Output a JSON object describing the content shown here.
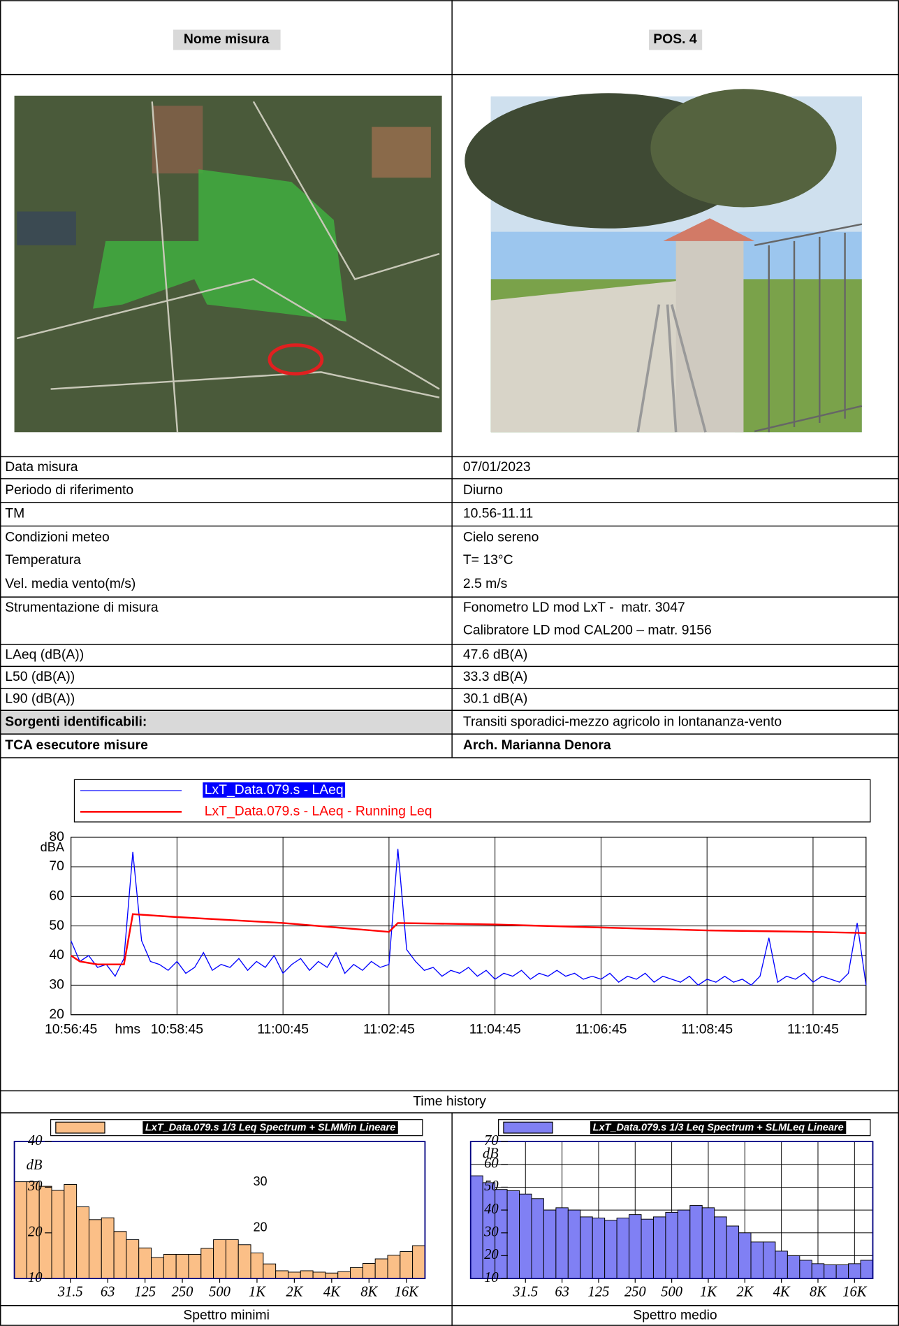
{
  "header": {
    "left": "Nome misura",
    "right": "POS. 4"
  },
  "table": {
    "rows": [
      {
        "label": "Data misura",
        "value": "07/01/2023"
      },
      {
        "label": "Periodo di riferimento",
        "value": "Diurno"
      },
      {
        "label": "TM",
        "value": "10.56-11.11"
      },
      {
        "label": "Condizioni meteo",
        "value": "Cielo sereno"
      },
      {
        "label": "Temperatura",
        "value": "T= 13°C"
      },
      {
        "label": "Vel. media vento(m/s)",
        "value": "2.5 m/s"
      },
      {
        "label": "Strumentazione di misura",
        "value": [
          "Fonometro LD mod LxT -  matr. 3047",
          "Calibratore LD mod CAL200 – matr. 9156"
        ]
      },
      {
        "label": "LAeq (dB(A))",
        "value": "47.6 dB(A)"
      },
      {
        "label": "L50 (dB(A))",
        "value": "33.3 dB(A)"
      },
      {
        "label": "L90 (dB(A))",
        "value": "30.1 dB(A)"
      },
      {
        "label": "Sorgenti identificabili:",
        "value": "Transiti sporadici-mezzo agricolo in lontananza-vento"
      },
      {
        "label": "TCA esecutore misure",
        "value": "Arch. Marianna Denora"
      }
    ]
  },
  "chart_data": [
    {
      "type": "line",
      "caption": "Time history",
      "xlabel": "hms",
      "ylabel": "dBA",
      "grid": true,
      "xlim": [
        39405,
        40305
      ],
      "xticks": [
        {
          "value": 39405,
          "label": "10:56:45"
        },
        {
          "value": 39525,
          "label": "10:58:45"
        },
        {
          "value": 39645,
          "label": "11:00:45"
        },
        {
          "value": 39765,
          "label": "11:02:45"
        },
        {
          "value": 39885,
          "label": "11:04:45"
        },
        {
          "value": 40005,
          "label": "11:06:45"
        },
        {
          "value": 40125,
          "label": "11:08:45"
        },
        {
          "value": 40245,
          "label": "11:10:45"
        }
      ],
      "ylim": [
        20,
        80
      ],
      "yticks": [
        20,
        30,
        40,
        50,
        60,
        70,
        80
      ],
      "series": [
        {
          "name": "LxT_Data.079.s - LAeq",
          "color": "#0000ff",
          "x": [
            39405,
            39415,
            39425,
            39435,
            39445,
            39455,
            39465,
            39475,
            39485,
            39495,
            39505,
            39515,
            39525,
            39535,
            39545,
            39555,
            39565,
            39575,
            39585,
            39595,
            39605,
            39615,
            39625,
            39635,
            39645,
            39655,
            39665,
            39675,
            39685,
            39695,
            39705,
            39715,
            39725,
            39735,
            39745,
            39755,
            39765,
            39775,
            39785,
            39795,
            39805,
            39815,
            39825,
            39835,
            39845,
            39855,
            39865,
            39875,
            39885,
            39895,
            39905,
            39915,
            39925,
            39935,
            39945,
            39955,
            39965,
            39975,
            39985,
            39995,
            40005,
            40015,
            40025,
            40035,
            40045,
            40055,
            40065,
            40075,
            40085,
            40095,
            40105,
            40115,
            40125,
            40135,
            40145,
            40155,
            40165,
            40175,
            40185,
            40195,
            40205,
            40215,
            40225,
            40235,
            40245,
            40255,
            40265,
            40275,
            40285,
            40295,
            40305
          ],
          "values": [
            45,
            38,
            40,
            36,
            37,
            33,
            39,
            75,
            45,
            38,
            37,
            35,
            38,
            34,
            36,
            41,
            35,
            37,
            36,
            39,
            35,
            38,
            36,
            40,
            34,
            37,
            39,
            35,
            38,
            36,
            41,
            34,
            37,
            35,
            38,
            36,
            37,
            76,
            42,
            38,
            35,
            36,
            33,
            35,
            34,
            36,
            33,
            35,
            32,
            34,
            33,
            35,
            32,
            34,
            33,
            35,
            33,
            34,
            32,
            33,
            32,
            34,
            31,
            33,
            32,
            34,
            31,
            33,
            32,
            31,
            33,
            30,
            32,
            31,
            33,
            31,
            32,
            30,
            33,
            46,
            31,
            33,
            32,
            34,
            31,
            33,
            32,
            31,
            34,
            51,
            30
          ]
        },
        {
          "name": "LxT_Data.079.s - LAeq - Running Leq",
          "color": "#ff0000",
          "x": [
            39405,
            39415,
            39435,
            39465,
            39475,
            39525,
            39645,
            39765,
            39775,
            39885,
            40005,
            40125,
            40245,
            40305
          ],
          "values": [
            40,
            38,
            37,
            37,
            54,
            53,
            51,
            48,
            51,
            50.5,
            49.5,
            48.5,
            48,
            47.6
          ]
        }
      ]
    },
    {
      "type": "bar",
      "caption": "Spettro minimi",
      "ylabel": "dB",
      "grid": false,
      "categories": [
        null,
        null,
        null,
        null,
        "31.5",
        null,
        null,
        "63",
        null,
        null,
        "125",
        null,
        null,
        "250",
        null,
        null,
        "500",
        null,
        null,
        "1K",
        null,
        null,
        "2K",
        null,
        null,
        "4K",
        null,
        null,
        "8K",
        null,
        null,
        "16K",
        null
      ],
      "ylim": [
        10,
        40
      ],
      "yticks": [
        10,
        20,
        30,
        40
      ],
      "annotations": [
        {
          "text": "30"
        },
        {
          "text": "20"
        }
      ],
      "series": [
        {
          "name": "LxT_Data.079.s 1/3 Leq Spectrum + SLMMin Lineare",
          "color": "#fbbf87",
          "values": [
            31.2,
            31.2,
            30.2,
            29.3,
            30.6,
            25.7,
            22.9,
            23.3,
            20.3,
            18.5,
            16.7,
            14.6,
            15.3,
            15.3,
            15.3,
            16.6,
            18.5,
            18.5,
            17.4,
            15.6,
            13.2,
            11.7,
            11.4,
            11.7,
            11.4,
            11.2,
            11.5,
            12.4,
            13.3,
            14.3,
            15.1,
            15.9,
            17.2
          ]
        }
      ]
    },
    {
      "type": "bar",
      "caption": "Spettro medio",
      "ylabel": "dB",
      "grid": true,
      "categories": [
        null,
        null,
        null,
        null,
        "31.5",
        null,
        null,
        "63",
        null,
        null,
        "125",
        null,
        null,
        "250",
        null,
        null,
        "500",
        null,
        null,
        "1K",
        null,
        null,
        "2K",
        null,
        null,
        "4K",
        null,
        null,
        "8K",
        null,
        null,
        "16K",
        null
      ],
      "ylim": [
        10,
        70
      ],
      "yticks": [
        10,
        20,
        30,
        40,
        50,
        60,
        70
      ],
      "series": [
        {
          "name": "LxT_Data.079.s 1/3 Leq Spectrum + SLMLeq Lineare",
          "color": "#8080f4",
          "values": [
            55,
            52,
            49,
            48.5,
            47,
            45,
            40,
            41,
            40,
            37,
            36.5,
            35.5,
            36.5,
            38,
            36,
            37,
            39,
            40,
            42,
            41,
            37,
            33,
            30,
            26,
            26,
            22,
            20,
            18,
            16.5,
            16,
            16,
            16.5,
            18
          ]
        }
      ]
    }
  ]
}
